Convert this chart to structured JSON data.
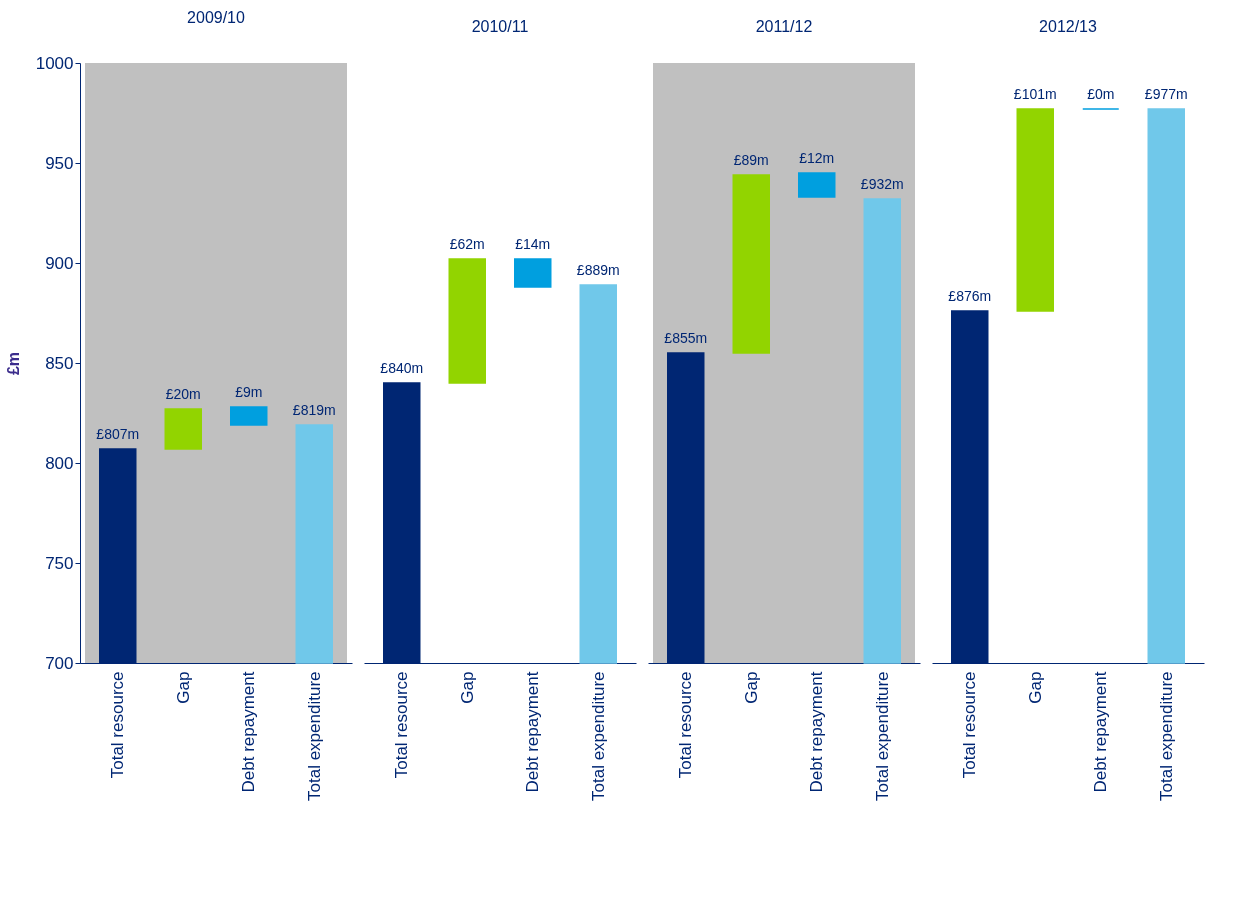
{
  "chart_data": [
    {
      "type": "bar",
      "title": "2009/10",
      "ylabel": "£m",
      "categories": [
        "Total resource",
        "Gap",
        "Debt repayment",
        "Total expenditure"
      ],
      "values": [
        807,
        20,
        9,
        819
      ],
      "base": [
        null,
        807,
        819,
        null
      ],
      "colors": [
        "#002673",
        "#92d400",
        "#009fdf",
        "#70c8ea"
      ],
      "value_labels": [
        "£807m",
        "£20m",
        "£9m",
        "£819m"
      ],
      "ylim": [
        700,
        1000
      ],
      "yticks": [
        700,
        750,
        800,
        850,
        900,
        950,
        1000
      ],
      "bands": [
        {
          "axis": "x",
          "from": "Total resource",
          "to": "Total expenditure",
          "color": "#c0c0c0"
        }
      ]
    },
    {
      "type": "bar",
      "title": "2010/11",
      "categories": [
        "Total resource",
        "Gap",
        "Debt repayment",
        "Total expenditure"
      ],
      "values": [
        840,
        62,
        14,
        889
      ],
      "base": [
        null,
        840,
        888,
        null
      ],
      "colors": [
        "#002673",
        "#92d400",
        "#009fdf",
        "#70c8ea"
      ],
      "value_labels": [
        "£840m",
        "£62m",
        "£14m",
        "£889m"
      ],
      "ylim": [
        700,
        1000
      ],
      "yticks": [
        700,
        750,
        800,
        850,
        900,
        950,
        1000
      ],
      "tick_labels": "x"
    },
    {
      "type": "bar",
      "title": "2011/12",
      "categories": [
        "Total resource",
        "Gap",
        "Debt repayment",
        "Total expenditure"
      ],
      "values": [
        855,
        89,
        12,
        932
      ],
      "base": [
        null,
        855,
        933,
        null
      ],
      "colors": [
        "#002673",
        "#92d400",
        "#009fdf",
        "#70c8ea"
      ],
      "value_labels": [
        "£855m",
        "£89m",
        "£12m",
        "£932m"
      ],
      "ylim": [
        700,
        1000
      ],
      "yticks": [
        700,
        750,
        800,
        850,
        900,
        950,
        1000
      ],
      "tick_labels": "x",
      "bands": [
        {
          "axis": "x",
          "from": "Total resource",
          "to": "Total expenditure",
          "color": "#c0c0c0"
        }
      ]
    },
    {
      "type": "bar",
      "title": "2012/13",
      "categories": [
        "Total resource",
        "Gap",
        "Debt repayment",
        "Total expenditure"
      ],
      "values": [
        876,
        101,
        0,
        977
      ],
      "base": [
        null,
        876,
        977,
        null
      ],
      "colors": [
        "#002673",
        "#92d400",
        "#009fdf",
        "#70c8ea"
      ],
      "value_labels": [
        "£876m",
        "£101m",
        "£0m",
        "£977m"
      ],
      "ylim": [
        700,
        1000
      ],
      "yticks": [
        700,
        750,
        800,
        850,
        900,
        950,
        1000
      ],
      "tick_labels": "x"
    }
  ]
}
